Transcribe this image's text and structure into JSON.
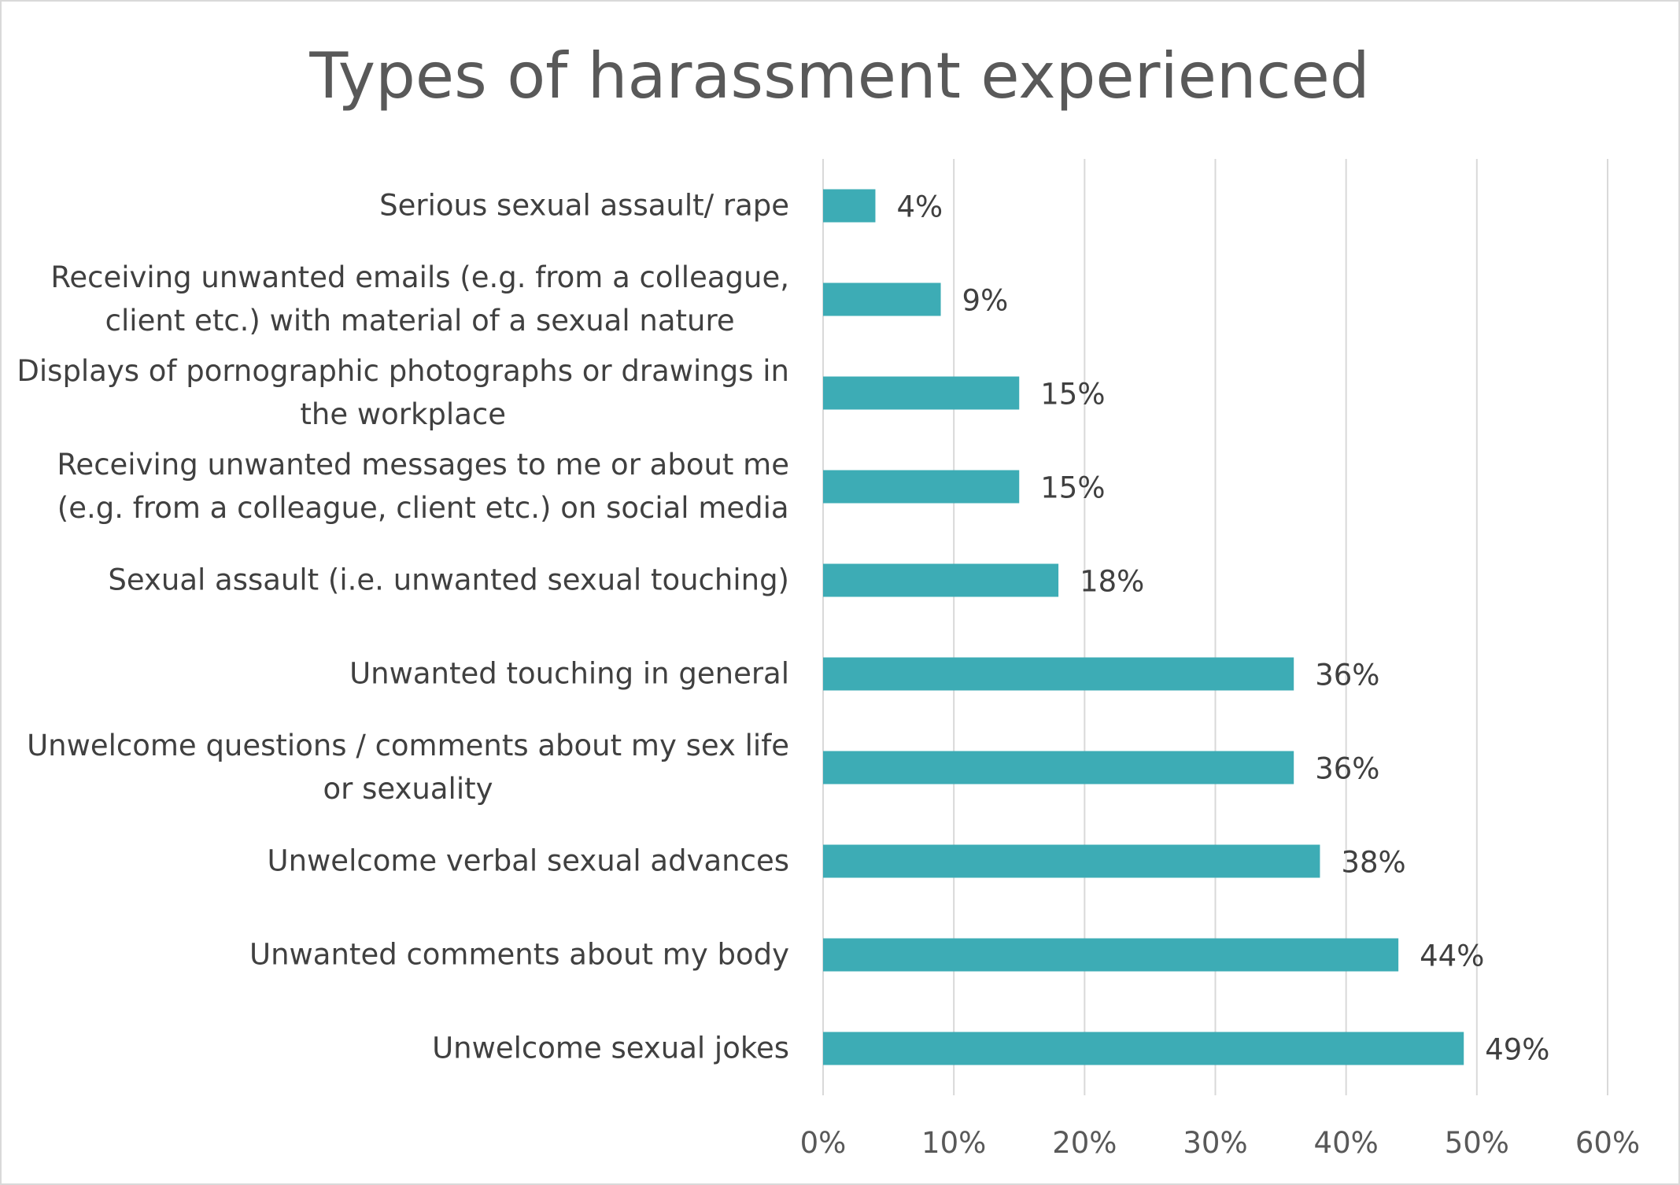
{
  "chart_data": {
    "type": "bar",
    "orientation": "horizontal",
    "title": "Types of harassment experienced",
    "categories": [
      [
        "Serious sexual assault/ rape"
      ],
      [
        "Receiving unwanted emails (e.g. from a colleague,",
        "client etc.) with material of a sexual nature"
      ],
      [
        "Displays of pornographic photographs or drawings in",
        "the workplace"
      ],
      [
        "Receiving unwanted messages to me or about me",
        "(e.g. from a colleague, client etc.) on social media"
      ],
      [
        "Sexual assault (i.e. unwanted sexual touching)"
      ],
      [
        "Unwanted touching in general"
      ],
      [
        "Unwelcome questions / comments about my sex life",
        "or sexuality"
      ],
      [
        "Unwelcome verbal sexual advances"
      ],
      [
        "Unwanted comments about my body"
      ],
      [
        "Unwelcome sexual jokes"
      ]
    ],
    "values": [
      4,
      9,
      15,
      15,
      18,
      36,
      36,
      38,
      44,
      49
    ],
    "data_labels": [
      "4%",
      "9%",
      "15%",
      "15%",
      "18%",
      "36%",
      "36%",
      "38%",
      "44%",
      "49%"
    ],
    "xlim": [
      0,
      60
    ],
    "x_ticks": [
      0,
      10,
      20,
      30,
      40,
      50,
      60
    ],
    "x_tick_labels": [
      "0%",
      "10%",
      "20%",
      "30%",
      "40%",
      "50%",
      "60%"
    ],
    "grid": true,
    "legend": "none",
    "colors": {
      "bar": "#3dacb5",
      "grid": "#d9d9d9",
      "text": "#404040",
      "title": "#595959"
    }
  }
}
